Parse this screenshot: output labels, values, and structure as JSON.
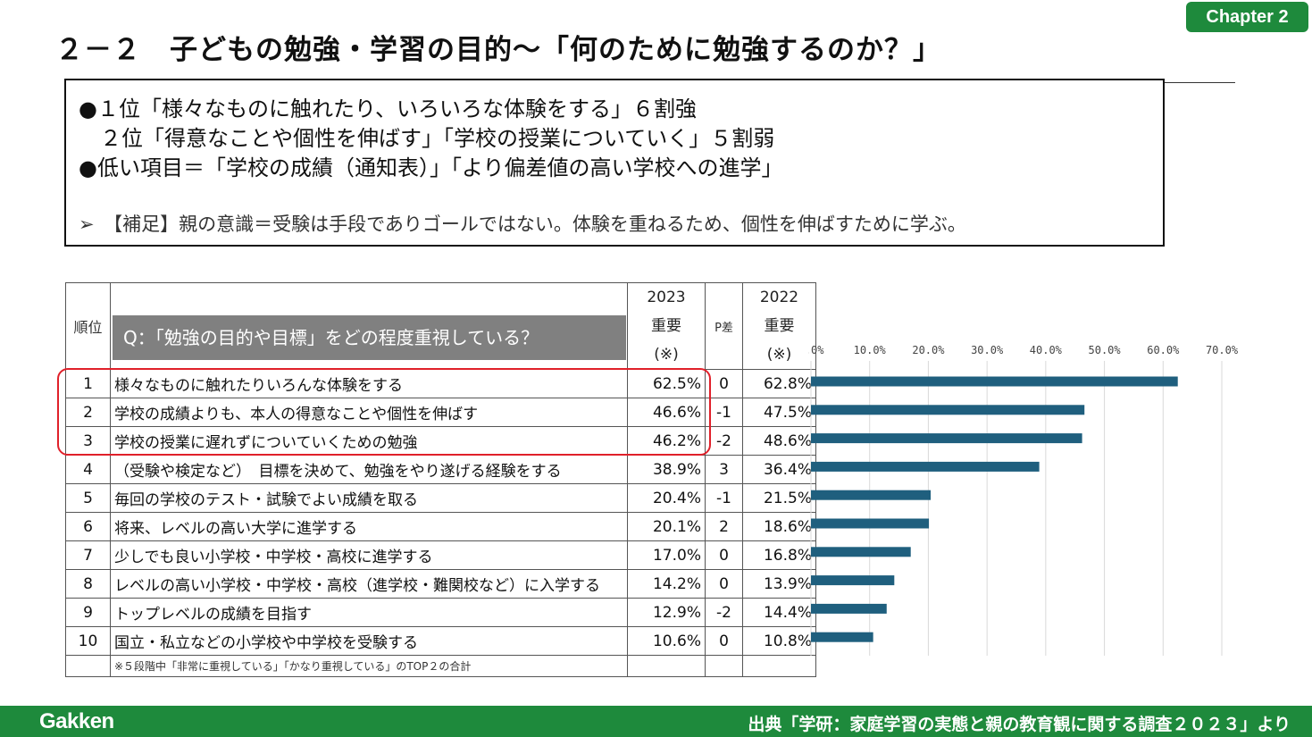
{
  "chapter_badge": "Chapter 2",
  "title": "２－２　子どもの勉強・学習の目的～「何のために勉強するのか？」",
  "summary": {
    "line1": "●１位「様々なものに触れたり、いろいろな体験をする」６割強",
    "line2": "　２位「得意なことや個性を伸ばす」「学校の授業についていく」５割弱",
    "line3": "●低い項目＝「学校の成績（通知表）」「より偏差値の高い学校への進学」",
    "note": "➢　【補足】親の意識＝受験は手段でありゴールではない。体験を重ねるため、個性を伸ばすために学ぶ。"
  },
  "table": {
    "header": {
      "rank": "順位",
      "question": "Q：「勉強の目的や目標」をどの程度重視している？",
      "year2023": "2023",
      "importance2023": "重要",
      "mark2023": "(※)",
      "diff": "P差",
      "year2022": "2022",
      "importance2022": "重要",
      "mark2022": "(※)"
    },
    "rows": [
      {
        "rank": "1",
        "item": "様々なものに触れたりいろんな体験をする",
        "v2023": "62.5%",
        "diff": "0",
        "v2022": "62.8%"
      },
      {
        "rank": "2",
        "item": "学校の成績よりも、本人の得意なことや個性を伸ばす",
        "v2023": "46.6%",
        "diff": "-1",
        "v2022": "47.5%"
      },
      {
        "rank": "3",
        "item": "学校の授業に遅れずについていくための勉強",
        "v2023": "46.2%",
        "diff": "-2",
        "v2022": "48.6%"
      },
      {
        "rank": "4",
        "item": "（受験や検定など）　目標を決めて、勉強をやり遂げる経験をする",
        "v2023": "38.9%",
        "diff": "3",
        "v2022": "36.4%"
      },
      {
        "rank": "5",
        "item": "毎回の学校のテスト・試験でよい成績を取る",
        "v2023": "20.4%",
        "diff": "-1",
        "v2022": "21.5%"
      },
      {
        "rank": "6",
        "item": "将来、レベルの高い大学に進学する",
        "v2023": "20.1%",
        "diff": "2",
        "v2022": "18.6%"
      },
      {
        "rank": "7",
        "item": "少しでも良い小学校・中学校・高校に進学する",
        "v2023": "17.0%",
        "diff": "0",
        "v2022": "16.8%"
      },
      {
        "rank": "8",
        "item": "レベルの高い小学校・中学校・高校（進学校・難関校など）に入学する",
        "v2023": "14.2%",
        "diff": "0",
        "v2022": "13.9%"
      },
      {
        "rank": "9",
        "item": "トップレベルの成績を目指す",
        "v2023": "12.9%",
        "diff": "-2",
        "v2022": "14.4%"
      },
      {
        "rank": "10",
        "item": "国立・私立などの小学校や中学校を受験する",
        "v2023": "10.6%",
        "diff": "0",
        "v2022": "10.8%"
      }
    ],
    "footnote": "※５段階中「非常に重視している」「かなり重視している」のTOP２の合計"
  },
  "chart_data": {
    "type": "bar",
    "orientation": "horizontal",
    "categories": [
      "様々なものに触れたりいろんな体験をする",
      "学校の成績よりも、本人の得意なことや個性を伸ばす",
      "学校の授業に遅れずについていくための勉強",
      "（受験や検定など）　目標を決めて、勉強をやり遂げる経験をする",
      "毎回の学校のテスト・試験でよい成績を取る",
      "将来、レベルの高い大学に進学する",
      "少しでも良い小学校・中学校・高校に進学する",
      "レベルの高い小学校・中学校・高校（進学校・難関校など）に入学する",
      "トップレベルの成績を目指す",
      "国立・私立などの小学校や中学校を受験する"
    ],
    "values": [
      62.5,
      46.6,
      46.2,
      38.9,
      20.4,
      20.1,
      17.0,
      14.2,
      12.9,
      10.6
    ],
    "xlim": [
      0,
      70
    ],
    "ticks": [
      0,
      10,
      20,
      30,
      40,
      50,
      60,
      70
    ],
    "tick_labels": [
      "0.0%",
      "10.0%",
      "20.0%",
      "30.0%",
      "40.0%",
      "50.0%",
      "60.0%",
      "70.0%"
    ],
    "series_name": "2023 重要",
    "bar_color": "#1f5f7e",
    "grid": true
  },
  "colors": {
    "brand_green": "#1e8a3c",
    "highlight_red": "#e0202a",
    "question_gray": "#808080"
  },
  "footer": {
    "brand": "Gakken",
    "source": "出典「学研：家庭学習の実態と親の教育観に関する調査２０２３」より"
  }
}
